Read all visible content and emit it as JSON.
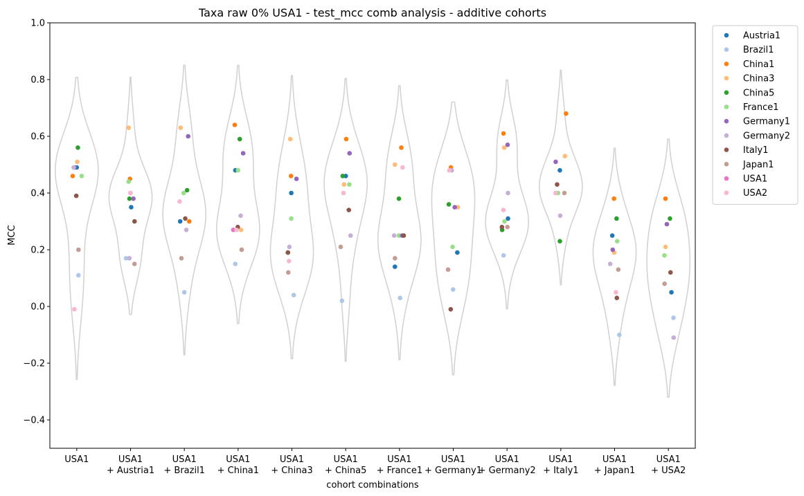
{
  "chart_data": {
    "type": "violin+strip",
    "title": "Taxa raw 0% USA1 - test_mcc comb analysis - additive cohorts",
    "xlabel": "cohort combinations",
    "ylabel": "MCC",
    "ylim": [
      -0.5,
      1.0
    ],
    "yticks": [
      {
        "value": -0.4,
        "label": "−0.4"
      },
      {
        "value": -0.2,
        "label": "−0.2"
      },
      {
        "value": 0.0,
        "label": "0.0"
      },
      {
        "value": 0.2,
        "label": "0.2"
      },
      {
        "value": 0.4,
        "label": "0.4"
      },
      {
        "value": 0.6,
        "label": "0.6"
      },
      {
        "value": 0.8,
        "label": "0.8"
      },
      {
        "value": 1.0,
        "label": "1.0"
      }
    ],
    "categories": [
      [
        "USA1"
      ],
      [
        "USA1",
        "+ Austria1"
      ],
      [
        "USA1",
        "+ Brazil1"
      ],
      [
        "USA1",
        "+ China1"
      ],
      [
        "USA1",
        "+ China3"
      ],
      [
        "USA1",
        "+ China5"
      ],
      [
        "USA1",
        "+ France1"
      ],
      [
        "USA1",
        "+ Germany1"
      ],
      [
        "USA1",
        "+ Germany2"
      ],
      [
        "USA1",
        "+ Italy1"
      ],
      [
        "USA1",
        "+ Japan1"
      ],
      [
        "USA1",
        "+ USA2"
      ]
    ],
    "legend_position": "outside-top-right",
    "grid": false,
    "series": [
      {
        "name": "Austria1",
        "color": "#1f77b4",
        "values": [
          0.49,
          0.35,
          0.3,
          0.48,
          0.4,
          0.46,
          0.14,
          0.19,
          0.31,
          0.48,
          0.25,
          0.05
        ]
      },
      {
        "name": "Brazil1",
        "color": "#aec7e8",
        "values": [
          0.11,
          0.17,
          0.05,
          0.15,
          0.04,
          0.02,
          0.03,
          0.06,
          0.18,
          0.4,
          -0.1,
          -0.04
        ]
      },
      {
        "name": "China1",
        "color": "#ff7f0e",
        "values": [
          0.46,
          0.45,
          0.3,
          0.64,
          0.46,
          0.59,
          0.56,
          0.49,
          0.61,
          0.68,
          0.38,
          0.38
        ]
      },
      {
        "name": "China3",
        "color": "#ffbb78",
        "values": [
          0.51,
          0.63,
          0.63,
          0.27,
          0.59,
          0.43,
          0.5,
          0.35,
          0.56,
          0.53,
          0.19,
          0.21
        ]
      },
      {
        "name": "China5",
        "color": "#2ca02c",
        "values": [
          0.56,
          0.38,
          0.41,
          0.59,
          0.19,
          0.46,
          0.38,
          0.36,
          0.27,
          0.23,
          0.31,
          0.31
        ]
      },
      {
        "name": "France1",
        "color": "#98df8a",
        "values": [
          0.46,
          0.44,
          0.4,
          0.48,
          0.31,
          0.43,
          0.25,
          0.21,
          0.3,
          0.4,
          0.23,
          0.18
        ]
      },
      {
        "name": "Germany1",
        "color": "#9467bd",
        "values": [
          0.49,
          0.38,
          0.6,
          0.54,
          0.45,
          0.54,
          0.25,
          0.35,
          0.57,
          0.51,
          0.2,
          0.29
        ]
      },
      {
        "name": "Germany2",
        "color": "#c5b0d5",
        "values": [
          0.49,
          0.17,
          0.27,
          0.32,
          0.21,
          0.25,
          0.25,
          0.48,
          0.4,
          0.32,
          0.15,
          -0.11
        ]
      },
      {
        "name": "Italy1",
        "color": "#8c564b",
        "values": [
          0.39,
          0.3,
          0.31,
          0.28,
          0.19,
          0.34,
          0.25,
          -0.01,
          0.28,
          0.43,
          0.03,
          0.12
        ]
      },
      {
        "name": "Japan1",
        "color": "#c49c94",
        "values": [
          0.2,
          0.15,
          0.17,
          0.2,
          0.12,
          0.21,
          0.17,
          0.13,
          0.28,
          0.4,
          0.13,
          0.08
        ]
      },
      {
        "name": "USA1",
        "color": "#e377c2",
        "values": [
          null,
          0.4,
          null,
          0.27,
          null,
          null,
          null,
          null,
          null,
          null,
          null,
          null
        ]
      },
      {
        "name": "USA2",
        "color": "#f7b6d2",
        "values": [
          -0.01,
          0.4,
          0.37,
          0.27,
          0.16,
          0.4,
          0.49,
          0.48,
          0.34,
          0.4,
          0.05,
          null
        ]
      }
    ]
  }
}
